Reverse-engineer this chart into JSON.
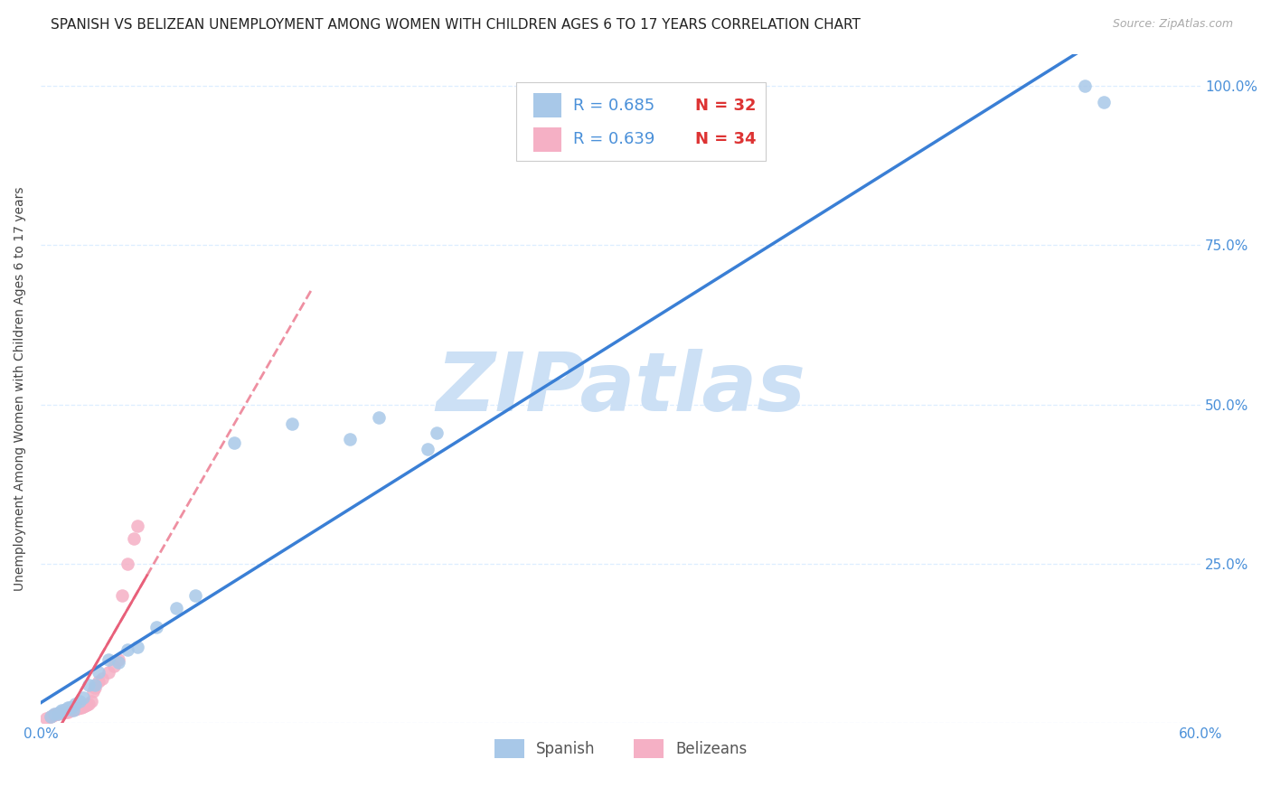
{
  "title": "SPANISH VS BELIZEAN UNEMPLOYMENT AMONG WOMEN WITH CHILDREN AGES 6 TO 17 YEARS CORRELATION CHART",
  "source": "Source: ZipAtlas.com",
  "ylabel": "Unemployment Among Women with Children Ages 6 to 17 years",
  "xlim": [
    0.0,
    0.6
  ],
  "ylim": [
    0.0,
    1.05
  ],
  "xtick_positions": [
    0.0,
    0.1,
    0.2,
    0.3,
    0.4,
    0.5,
    0.6
  ],
  "xticklabels": [
    "0.0%",
    "",
    "",
    "",
    "",
    "",
    "60.0%"
  ],
  "ytick_positions": [
    0.0,
    0.25,
    0.5,
    0.75,
    1.0
  ],
  "ytick_labels_right": [
    "",
    "25.0%",
    "50.0%",
    "75.0%",
    "100.0%"
  ],
  "spanish_R": 0.685,
  "spanish_N": 32,
  "belizean_R": 0.639,
  "belizean_N": 34,
  "spanish_color": "#a8c8e8",
  "belizean_color": "#f5b0c5",
  "spanish_line_color": "#3a7fd5",
  "belizean_line_color": "#e8607a",
  "grid_color": "#ddeeff",
  "grid_style": "--",
  "tick_color": "#4a90d9",
  "background_color": "#ffffff",
  "watermark": "ZIPatlas",
  "watermark_color": "#cce0f5",
  "legend_r_color": "#4a90d9",
  "legend_n_color": "#dd3333",
  "title_fontsize": 11,
  "axis_label_fontsize": 10,
  "tick_fontsize": 11,
  "legend_fontsize": 13,
  "source_fontsize": 9,
  "spanish_x": [
    0.005,
    0.007,
    0.009,
    0.01,
    0.011,
    0.012,
    0.013,
    0.014,
    0.015,
    0.016,
    0.017,
    0.018,
    0.02,
    0.022,
    0.025,
    0.028,
    0.03,
    0.035,
    0.04,
    0.045,
    0.05,
    0.06,
    0.07,
    0.08,
    0.1,
    0.13,
    0.16,
    0.175,
    0.2,
    0.205,
    0.54,
    0.55
  ],
  "spanish_y": [
    0.01,
    0.015,
    0.015,
    0.018,
    0.02,
    0.02,
    0.022,
    0.025,
    0.025,
    0.025,
    0.02,
    0.03,
    0.035,
    0.04,
    0.06,
    0.06,
    0.08,
    0.1,
    0.095,
    0.115,
    0.12,
    0.15,
    0.18,
    0.2,
    0.44,
    0.47,
    0.445,
    0.48,
    0.43,
    0.455,
    1.0,
    0.975
  ],
  "belizean_x": [
    0.003,
    0.005,
    0.006,
    0.007,
    0.008,
    0.009,
    0.01,
    0.011,
    0.012,
    0.013,
    0.014,
    0.015,
    0.016,
    0.017,
    0.018,
    0.019,
    0.02,
    0.021,
    0.022,
    0.023,
    0.024,
    0.025,
    0.026,
    0.027,
    0.028,
    0.03,
    0.032,
    0.035,
    0.038,
    0.04,
    0.042,
    0.045,
    0.048,
    0.05
  ],
  "belizean_y": [
    0.008,
    0.01,
    0.012,
    0.013,
    0.014,
    0.015,
    0.016,
    0.016,
    0.017,
    0.018,
    0.018,
    0.02,
    0.02,
    0.022,
    0.022,
    0.023,
    0.025,
    0.025,
    0.026,
    0.027,
    0.028,
    0.03,
    0.035,
    0.05,
    0.055,
    0.065,
    0.07,
    0.08,
    0.09,
    0.1,
    0.2,
    0.25,
    0.29,
    0.31
  ]
}
